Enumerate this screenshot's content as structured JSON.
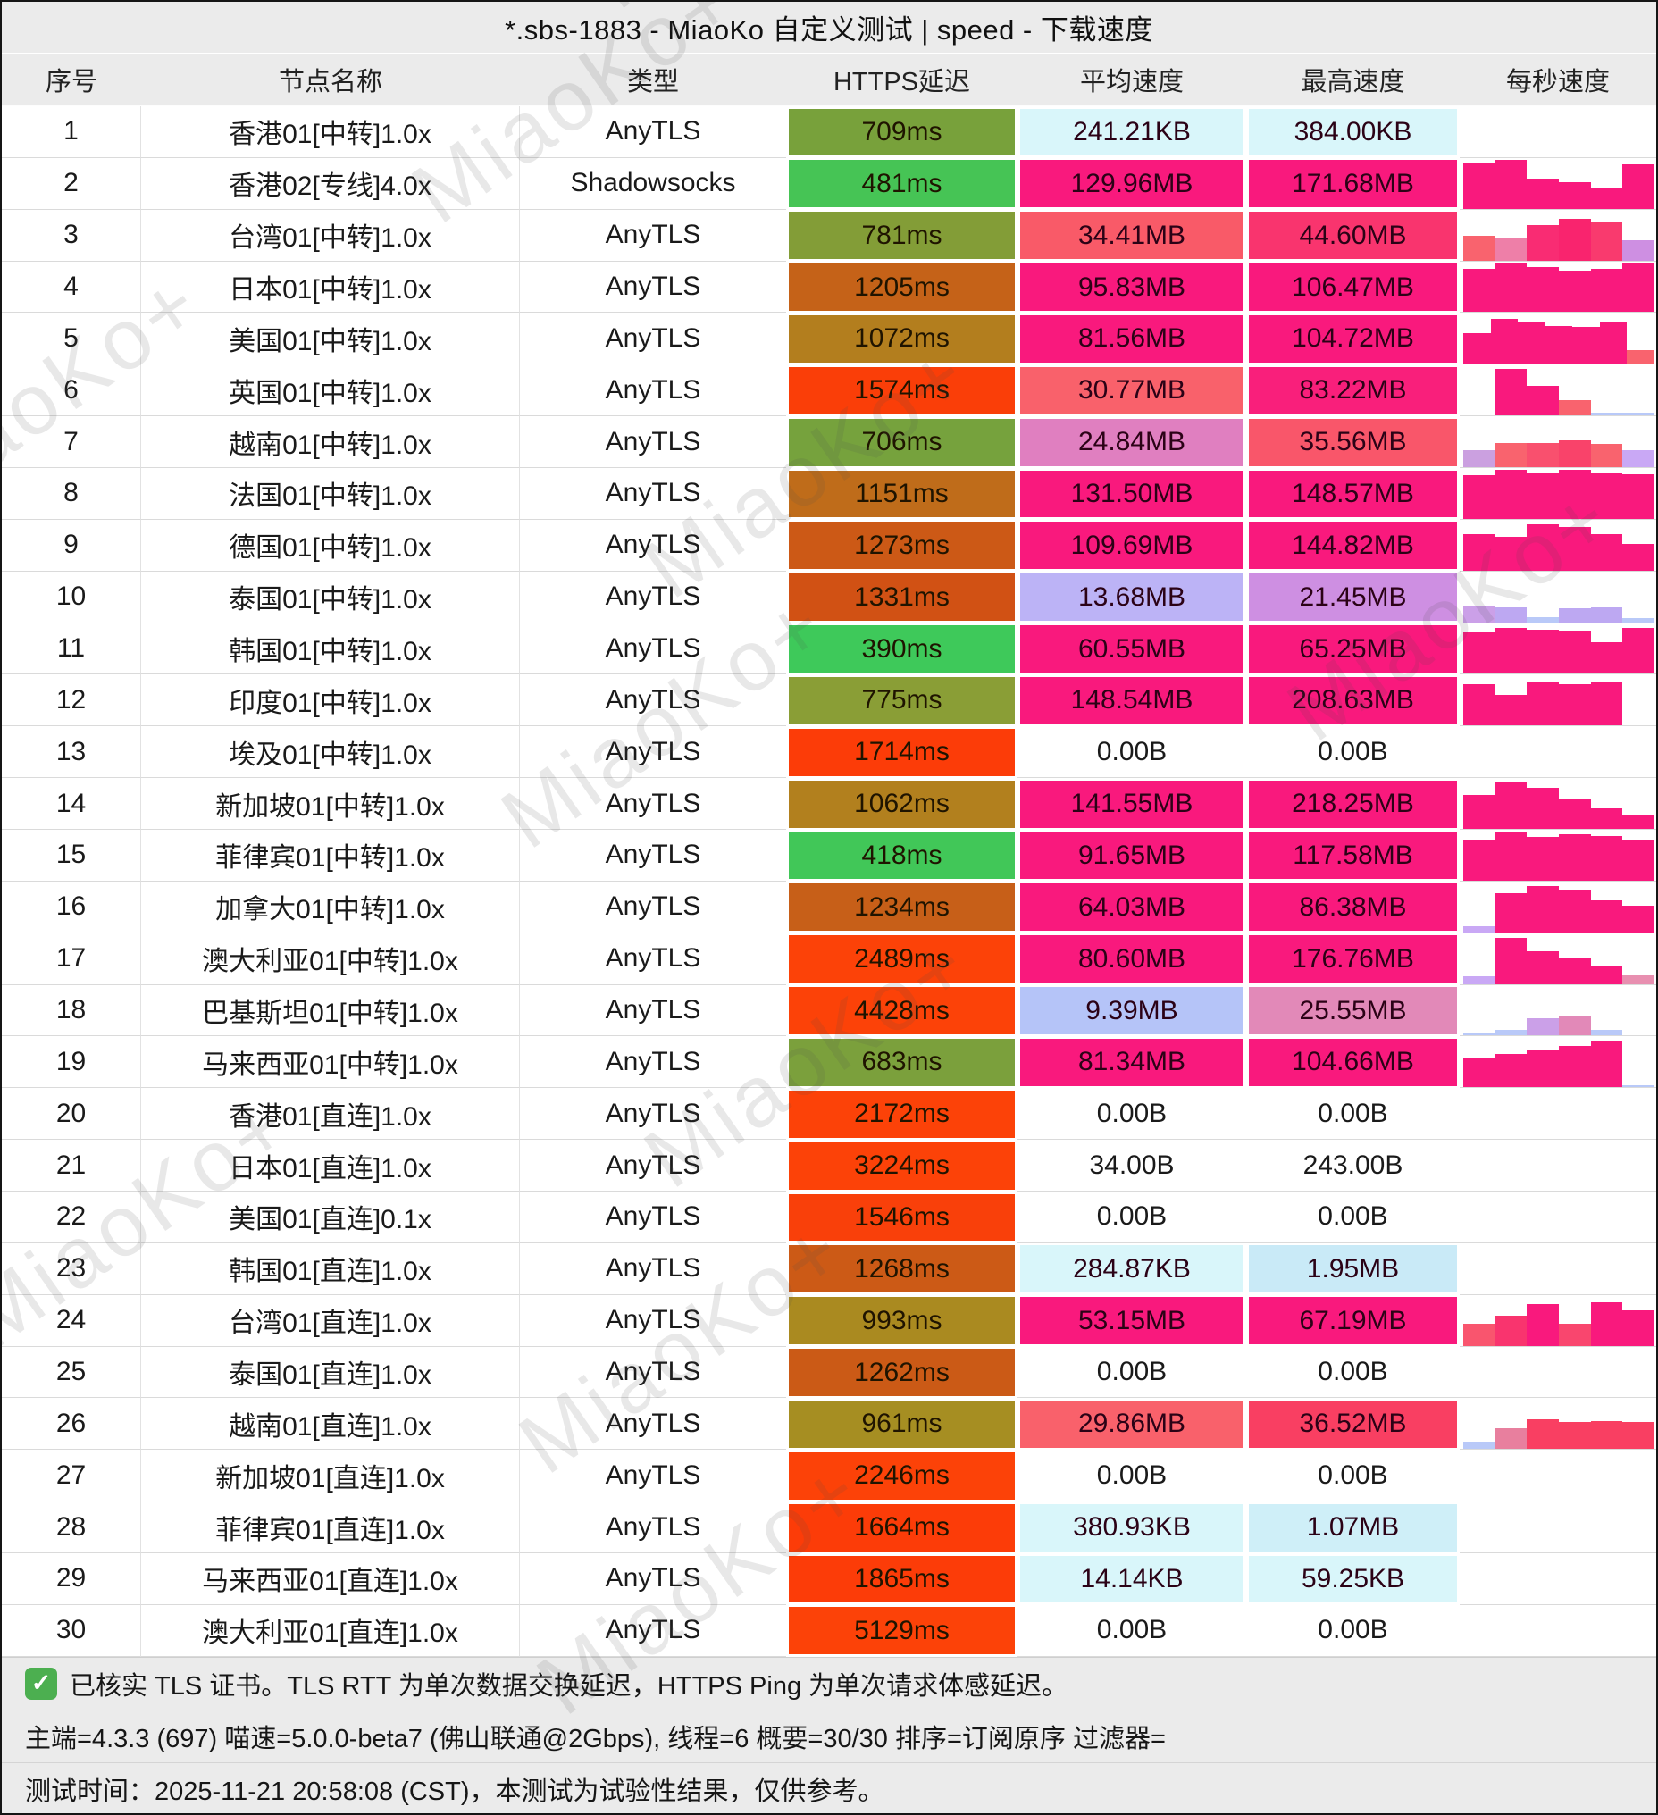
{
  "title": "*.sbs-1883 - MiaoKo 自定义测试 | speed - 下载速度",
  "watermark": "MiaoKo+",
  "accent_deep_pink": "#F9197D",
  "columns": [
    "序号",
    "节点名称",
    "类型",
    "HTTPS延迟",
    "平均速度",
    "最高速度",
    "每秒速度"
  ],
  "rows": [
    {
      "id": "1",
      "name": "香港01[中转]1.0x",
      "type": "AnyTLS",
      "latency": "709ms",
      "latency_color": "#78A13B",
      "avg": "241.21KB",
      "avg_color": "#D9F6FA",
      "max": "384.00KB",
      "max_color": "#D9F6FA",
      "spark": []
    },
    {
      "id": "2",
      "name": "香港02[专线]4.0x",
      "type": "Shadowsocks",
      "latency": "481ms",
      "latency_color": "#46C455",
      "avg": "129.96MB",
      "avg_color": "#F9197D",
      "max": "171.68MB",
      "max_color": "#F9197D",
      "spark": [
        [
          0.95,
          "#F9197D"
        ],
        [
          1,
          "#F9197D"
        ],
        [
          0.62,
          "#F9197D"
        ],
        [
          0.55,
          "#F9197D"
        ],
        [
          0.42,
          "#F9197D"
        ],
        [
          0.92,
          "#F9197D"
        ]
      ]
    },
    {
      "id": "3",
      "name": "台湾01[中转]1.0x",
      "type": "AnyTLS",
      "latency": "781ms",
      "latency_color": "#839D37",
      "avg": "34.41MB",
      "avg_color": "#F95A68",
      "max": "44.60MB",
      "max_color": "#F9346E",
      "spark": [
        [
          0.5,
          "#F9636E"
        ],
        [
          0.45,
          "#EE7FA8"
        ],
        [
          0.72,
          "#F92C73"
        ],
        [
          0.85,
          "#F9246E"
        ],
        [
          0.78,
          "#F93A6E"
        ],
        [
          0.42,
          "#CE8FE2"
        ]
      ]
    },
    {
      "id": "4",
      "name": "日本01[中转]1.0x",
      "type": "AnyTLS",
      "latency": "1205ms",
      "latency_color": "#C56218",
      "avg": "95.83MB",
      "avg_color": "#F9197D",
      "max": "106.47MB",
      "max_color": "#F9197D",
      "spark": [
        [
          0.88,
          "#F9197D"
        ],
        [
          1,
          "#F9197D"
        ],
        [
          0.92,
          "#F9197D"
        ],
        [
          0.85,
          "#F9197D"
        ],
        [
          0.88,
          "#F9197D"
        ],
        [
          1,
          "#F9197D"
        ]
      ]
    },
    {
      "id": "5",
      "name": "美国01[中转]1.0x",
      "type": "AnyTLS",
      "latency": "1072ms",
      "latency_color": "#B37E1E",
      "avg": "81.56MB",
      "avg_color": "#F9197D",
      "max": "104.72MB",
      "max_color": "#F9197D",
      "spark": [
        [
          0.62,
          "#F9197D"
        ],
        [
          0.92,
          "#F9197D"
        ],
        [
          0.86,
          "#F9197D"
        ],
        [
          0.78,
          "#F9197D"
        ],
        [
          0.75,
          "#F9197D"
        ],
        [
          0.85,
          "#F9197D"
        ],
        [
          0.28,
          "#F9636E"
        ]
      ]
    },
    {
      "id": "6",
      "name": "英国01[中转]1.0x",
      "type": "AnyTLS",
      "latency": "1574ms",
      "latency_color": "#FA3E08",
      "avg": "30.77MB",
      "avg_color": "#F9616B",
      "max": "83.22MB",
      "max_color": "#F91F7B",
      "spark": [
        [
          0,
          "#FFFFFF"
        ],
        [
          0.95,
          "#F9197D"
        ],
        [
          0.6,
          "#F9197D"
        ],
        [
          0.32,
          "#F9636E"
        ],
        [
          0.06,
          "#B9C9F8"
        ],
        [
          0.06,
          "#B9C9F8"
        ]
      ]
    },
    {
      "id": "7",
      "name": "越南01[中转]1.0x",
      "type": "AnyTLS",
      "latency": "706ms",
      "latency_color": "#76A23D",
      "avg": "24.84MB",
      "avg_color": "#E07FC0",
      "max": "35.56MB",
      "max_color": "#F9566A",
      "spark": [
        [
          0.35,
          "#CBA0E0"
        ],
        [
          0.5,
          "#F9636E"
        ],
        [
          0.5,
          "#F9506E"
        ],
        [
          0.55,
          "#F9436A"
        ],
        [
          0.48,
          "#F9636E"
        ],
        [
          0.35,
          "#C9A8F5"
        ]
      ]
    },
    {
      "id": "8",
      "name": "法国01[中转]1.0x",
      "type": "AnyTLS",
      "latency": "1151ms",
      "latency_color": "#BF6C1A",
      "avg": "131.50MB",
      "avg_color": "#F9197D",
      "max": "148.57MB",
      "max_color": "#F9197D",
      "spark": [
        [
          0.9,
          "#F9197D"
        ],
        [
          1,
          "#F9197D"
        ],
        [
          0.95,
          "#F9197D"
        ],
        [
          1,
          "#F9197D"
        ],
        [
          0.95,
          "#F9197D"
        ],
        [
          0.92,
          "#F9197D"
        ]
      ]
    },
    {
      "id": "9",
      "name": "德国01[中转]1.0x",
      "type": "AnyTLS",
      "latency": "1273ms",
      "latency_color": "#CC5916",
      "avg": "109.69MB",
      "avg_color": "#F9197D",
      "max": "144.82MB",
      "max_color": "#F9197D",
      "spark": [
        [
          0.75,
          "#F9197D"
        ],
        [
          0.7,
          "#F9197D"
        ],
        [
          0.95,
          "#F9197D"
        ],
        [
          0.9,
          "#F9197D"
        ],
        [
          0.75,
          "#F9197D"
        ],
        [
          0.55,
          "#F9197D"
        ]
      ]
    },
    {
      "id": "10",
      "name": "泰国01[中转]1.0x",
      "type": "AnyTLS",
      "latency": "1331ms",
      "latency_color": "#D15114",
      "avg": "13.68MB",
      "avg_color": "#BCB3F6",
      "max": "21.45MB",
      "max_color": "#CE8FE2",
      "spark": [
        [
          0.32,
          "#CBA0E8"
        ],
        [
          0.3,
          "#BDA8F2"
        ],
        [
          0.1,
          "#B9C9F8"
        ],
        [
          0.28,
          "#BDA8F2"
        ],
        [
          0.3,
          "#BDA8F2"
        ],
        [
          0.08,
          "#B9C9F8"
        ]
      ]
    },
    {
      "id": "11",
      "name": "韩国01[中转]1.0x",
      "type": "AnyTLS",
      "latency": "390ms",
      "latency_color": "#3EC95A",
      "avg": "60.55MB",
      "avg_color": "#F9197D",
      "max": "65.25MB",
      "max_color": "#F9197D",
      "spark": [
        [
          0.85,
          "#F9197D"
        ],
        [
          0.95,
          "#F9197D"
        ],
        [
          0.9,
          "#F9197D"
        ],
        [
          0.88,
          "#F9197D"
        ],
        [
          0.65,
          "#F9197D"
        ],
        [
          0.95,
          "#F9197D"
        ]
      ]
    },
    {
      "id": "12",
      "name": "印度01[中转]1.0x",
      "type": "AnyTLS",
      "latency": "775ms",
      "latency_color": "#8A9E36",
      "avg": "148.54MB",
      "avg_color": "#F9197D",
      "max": "208.63MB",
      "max_color": "#F9197D",
      "spark": [
        [
          0.85,
          "#F9197D"
        ],
        [
          0.62,
          "#F9197D"
        ],
        [
          0.88,
          "#F9197D"
        ],
        [
          0.85,
          "#F9197D"
        ],
        [
          0.88,
          "#F9197D"
        ],
        [
          0,
          "#FFFFFF"
        ]
      ]
    },
    {
      "id": "13",
      "name": "埃及01[中转]1.0x",
      "type": "AnyTLS",
      "latency": "1714ms",
      "latency_color": "#FC3C08",
      "avg": "0.00B",
      "avg_color": null,
      "max": "0.00B",
      "max_color": null,
      "spark": []
    },
    {
      "id": "14",
      "name": "新加坡01[中转]1.0x",
      "type": "AnyTLS",
      "latency": "1062ms",
      "latency_color": "#B2801E",
      "avg": "141.55MB",
      "avg_color": "#F9197D",
      "max": "218.25MB",
      "max_color": "#F9197D",
      "spark": [
        [
          0.7,
          "#F9197D"
        ],
        [
          0.95,
          "#F9197D"
        ],
        [
          0.85,
          "#F9197D"
        ],
        [
          0.6,
          "#F9197D"
        ],
        [
          0.42,
          "#F9197D"
        ],
        [
          0.3,
          "#F9197D"
        ]
      ]
    },
    {
      "id": "15",
      "name": "菲律宾01[中转]1.0x",
      "type": "AnyTLS",
      "latency": "418ms",
      "latency_color": "#41C758",
      "avg": "91.65MB",
      "avg_color": "#F9197D",
      "max": "117.58MB",
      "max_color": "#F9197D",
      "spark": [
        [
          0.85,
          "#F9197D"
        ],
        [
          1,
          "#F9197D"
        ],
        [
          0.9,
          "#F9197D"
        ],
        [
          0.95,
          "#F9197D"
        ],
        [
          0.92,
          "#F9197D"
        ],
        [
          0.85,
          "#F9197D"
        ]
      ]
    },
    {
      "id": "16",
      "name": "加拿大01[中转]1.0x",
      "type": "AnyTLS",
      "latency": "1234ms",
      "latency_color": "#C75F18",
      "avg": "64.03MB",
      "avg_color": "#F9197D",
      "max": "86.38MB",
      "max_color": "#F9197D",
      "spark": [
        [
          0.12,
          "#C9A8F5"
        ],
        [
          0.8,
          "#F9197D"
        ],
        [
          0.95,
          "#F9197D"
        ],
        [
          0.88,
          "#F9197D"
        ],
        [
          0.65,
          "#F9197D"
        ],
        [
          0.55,
          "#F9197D"
        ]
      ]
    },
    {
      "id": "17",
      "name": "澳大利亚01[中转]1.0x",
      "type": "AnyTLS",
      "latency": "2489ms",
      "latency_color": "#FC4208",
      "avg": "80.60MB",
      "avg_color": "#F9197D",
      "max": "176.76MB",
      "max_color": "#F9197D",
      "spark": [
        [
          0.15,
          "#C9A8F5"
        ],
        [
          0.95,
          "#F9197D"
        ],
        [
          0.68,
          "#F9197D"
        ],
        [
          0.52,
          "#F9197D"
        ],
        [
          0.38,
          "#F9197D"
        ],
        [
          0.18,
          "#E88FB0"
        ]
      ]
    },
    {
      "id": "18",
      "name": "巴基斯坦01[中转]1.0x",
      "type": "AnyTLS",
      "latency": "4428ms",
      "latency_color": "#FC4208",
      "avg": "9.39MB",
      "avg_color": "#B5C4F8",
      "max": "25.55MB",
      "max_color": "#E289B8",
      "spark": [
        [
          0.05,
          "#B9C9F8"
        ],
        [
          0.12,
          "#B9C9F8"
        ],
        [
          0.35,
          "#CBA0E8"
        ],
        [
          0.4,
          "#E289B8"
        ],
        [
          0.12,
          "#B9C9F8"
        ],
        [
          0,
          "#FFFFFF"
        ]
      ]
    },
    {
      "id": "19",
      "name": "马来西亚01[中转]1.0x",
      "type": "AnyTLS",
      "latency": "683ms",
      "latency_color": "#7BA03C",
      "avg": "81.34MB",
      "avg_color": "#F9197D",
      "max": "104.66MB",
      "max_color": "#F9197D",
      "spark": [
        [
          0.62,
          "#F9197D"
        ],
        [
          0.68,
          "#F9197D"
        ],
        [
          0.78,
          "#F9197D"
        ],
        [
          0.85,
          "#F9197D"
        ],
        [
          0.95,
          "#F9197D"
        ],
        [
          0.05,
          "#B9C9F8"
        ]
      ]
    },
    {
      "id": "20",
      "name": "香港01[直连]1.0x",
      "type": "AnyTLS",
      "latency": "2172ms",
      "latency_color": "#FC4208",
      "avg": "0.00B",
      "avg_color": null,
      "max": "0.00B",
      "max_color": null,
      "spark": []
    },
    {
      "id": "21",
      "name": "日本01[直连]1.0x",
      "type": "AnyTLS",
      "latency": "3224ms",
      "latency_color": "#FC4208",
      "avg": "34.00B",
      "avg_color": null,
      "max": "243.00B",
      "max_color": null,
      "spark": []
    },
    {
      "id": "22",
      "name": "美国01[直连]0.1x",
      "type": "AnyTLS",
      "latency": "1546ms",
      "latency_color": "#F9400A",
      "avg": "0.00B",
      "avg_color": null,
      "max": "0.00B",
      "max_color": null,
      "spark": []
    },
    {
      "id": "23",
      "name": "韩国01[直连]1.0x",
      "type": "AnyTLS",
      "latency": "1268ms",
      "latency_color": "#CC5A16",
      "avg": "284.87KB",
      "avg_color": "#D9F6FA",
      "max": "1.95MB",
      "max_color": "#C9EAF7",
      "spark": []
    },
    {
      "id": "24",
      "name": "台湾01[直连]1.0x",
      "type": "AnyTLS",
      "latency": "993ms",
      "latency_color": "#AA8A20",
      "avg": "53.15MB",
      "avg_color": "#F9197D",
      "max": "67.19MB",
      "max_color": "#F9197D",
      "spark": [
        [
          0.45,
          "#F9556E"
        ],
        [
          0.62,
          "#F9346E"
        ],
        [
          0.85,
          "#F9197D"
        ],
        [
          0.45,
          "#F9466E"
        ],
        [
          0.9,
          "#F9197D"
        ],
        [
          0.72,
          "#F9197D"
        ]
      ]
    },
    {
      "id": "25",
      "name": "泰国01[直连]1.0x",
      "type": "AnyTLS",
      "latency": "1262ms",
      "latency_color": "#CB5A16",
      "avg": "0.00B",
      "avg_color": null,
      "max": "0.00B",
      "max_color": null,
      "spark": []
    },
    {
      "id": "26",
      "name": "越南01[直连]1.0x",
      "type": "AnyTLS",
      "latency": "961ms",
      "latency_color": "#A68E22",
      "avg": "29.86MB",
      "avg_color": "#F9616B",
      "max": "36.52MB",
      "max_color": "#F93F62",
      "spark": [
        [
          0.15,
          "#B9C9F8"
        ],
        [
          0.42,
          "#E87F9E"
        ],
        [
          0.62,
          "#F93F62"
        ],
        [
          0.55,
          "#F93F62"
        ],
        [
          0.58,
          "#F93F62"
        ],
        [
          0.55,
          "#F93F62"
        ]
      ]
    },
    {
      "id": "27",
      "name": "新加坡01[直连]1.0x",
      "type": "AnyTLS",
      "latency": "2246ms",
      "latency_color": "#FC4208",
      "avg": "0.00B",
      "avg_color": null,
      "max": "0.00B",
      "max_color": null,
      "spark": []
    },
    {
      "id": "28",
      "name": "菲律宾01[直连]1.0x",
      "type": "AnyTLS",
      "latency": "1664ms",
      "latency_color": "#FC3C08",
      "avg": "380.93KB",
      "avg_color": "#D9F6FA",
      "max": "1.07MB",
      "max_color": "#CFEFF8",
      "spark": []
    },
    {
      "id": "29",
      "name": "马来西亚01[直连]1.0x",
      "type": "AnyTLS",
      "latency": "1865ms",
      "latency_color": "#FC3C08",
      "avg": "14.14KB",
      "avg_color": "#D9F6FA",
      "max": "59.25KB",
      "max_color": "#D9F6FA",
      "spark": []
    },
    {
      "id": "30",
      "name": "澳大利亚01[直连]1.0x",
      "type": "AnyTLS",
      "latency": "5129ms",
      "latency_color": "#FC4208",
      "avg": "0.00B",
      "avg_color": null,
      "max": "0.00B",
      "max_color": null,
      "spark": []
    }
  ],
  "footer": {
    "icon": "green-check",
    "line1": "已核实 TLS 证书。TLS RTT 为单次数据交换延迟，HTTPS Ping 为单次请求体感延迟。",
    "line2": "主端=4.3.3 (697) 喵速=5.0.0-beta7 (佛山联通@2Gbps), 线程=6 概要=30/30 排序=订阅原序 过滤器=",
    "line3": "测试时间：2025-11-21 20:58:08 (CST)，本测试为试验性结果，仅供参考。"
  }
}
